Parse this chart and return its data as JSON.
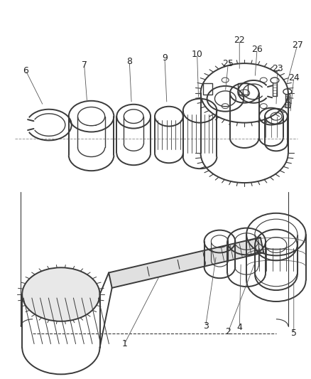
{
  "background_color": "#ffffff",
  "line_color": "#3a3a3a",
  "line_width": 1.0,
  "fig_width": 4.38,
  "fig_height": 5.33,
  "dpi": 100
}
